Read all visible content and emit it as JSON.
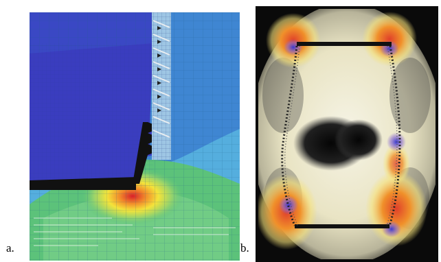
{
  "figure": {
    "panel_a": {
      "label": "a.",
      "content": "finite-element-contour-plot",
      "colors": {
        "background_blue": "#55aede",
        "plate_blue": "#3a3dbf",
        "green": "#5cc27a",
        "yellow": "#f2e23a",
        "red": "#e0402a"
      }
    },
    "panel_b": {
      "label": "b.",
      "content": "photoelastic-stress-pattern",
      "colors": {
        "background": "#0a0a0a",
        "light": "#f3f0d8",
        "orange": "#f0902a",
        "blue": "#4a5ad8"
      }
    }
  }
}
